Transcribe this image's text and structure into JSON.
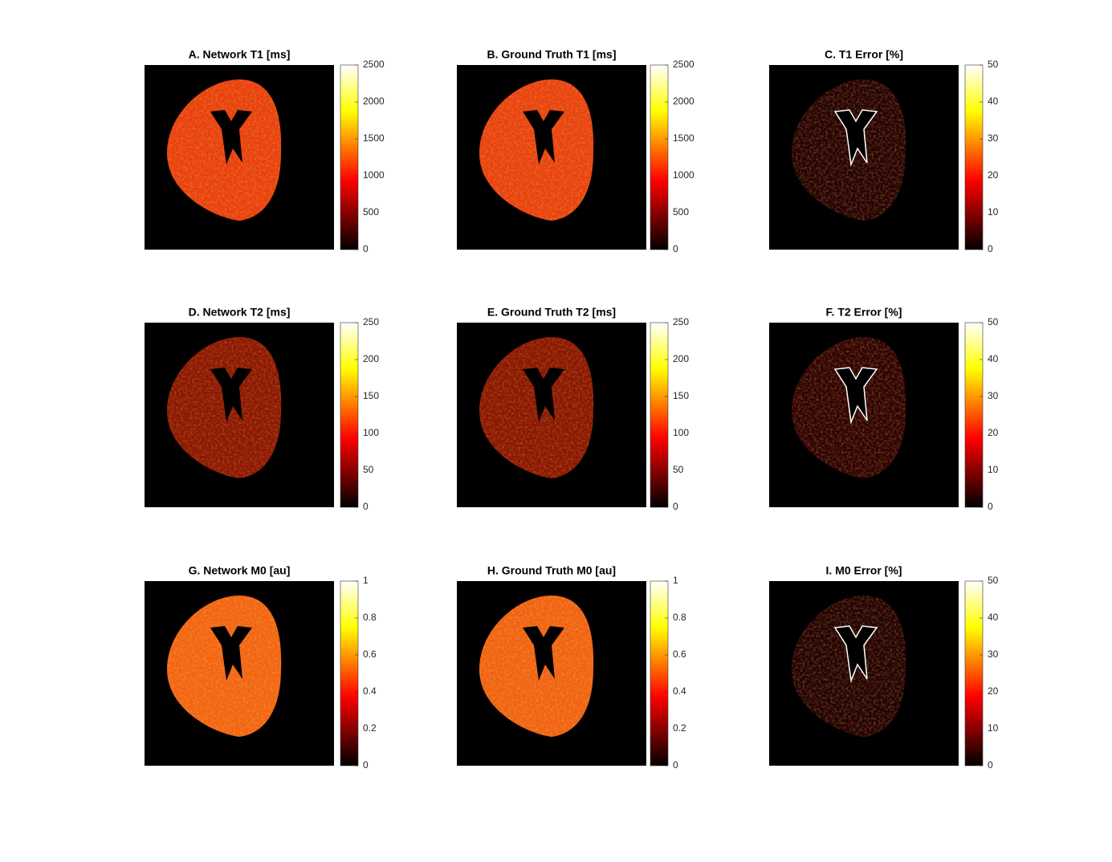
{
  "chart_data": [
    {
      "type": "heatmap",
      "title": "A. Network T1 [ms]",
      "colormap": "hot",
      "clim": [
        0,
        2500
      ],
      "cticks": [
        0,
        500,
        1000,
        1500,
        2000,
        2500
      ]
    },
    {
      "type": "heatmap",
      "title": "B. Ground Truth T1 [ms]",
      "colormap": "hot",
      "clim": [
        0,
        2500
      ],
      "cticks": [
        0,
        500,
        1000,
        1500,
        2000,
        2500
      ]
    },
    {
      "type": "heatmap",
      "title": "C. T1 Error [%]",
      "colormap": "hot",
      "clim": [
        0,
        50
      ],
      "cticks": [
        0,
        10,
        20,
        30,
        40,
        50
      ]
    },
    {
      "type": "heatmap",
      "title": "D. Network T2 [ms]",
      "colormap": "hot",
      "clim": [
        0,
        250
      ],
      "cticks": [
        0,
        50,
        100,
        150,
        200,
        250
      ]
    },
    {
      "type": "heatmap",
      "title": "E. Ground Truth T2 [ms]",
      "colormap": "hot",
      "clim": [
        0,
        250
      ],
      "cticks": [
        0,
        50,
        100,
        150,
        200,
        250
      ]
    },
    {
      "type": "heatmap",
      "title": "F. T2 Error [%]",
      "colormap": "hot",
      "clim": [
        0,
        50
      ],
      "cticks": [
        0,
        10,
        20,
        30,
        40,
        50
      ]
    },
    {
      "type": "heatmap",
      "title": "G. Network M0 [au]",
      "colormap": "hot",
      "clim": [
        0,
        1
      ],
      "cticks": [
        0,
        0.2,
        0.4,
        0.6,
        0.8,
        1
      ]
    },
    {
      "type": "heatmap",
      "title": "H. Ground Truth M0 [au]",
      "colormap": "hot",
      "clim": [
        0,
        1
      ],
      "cticks": [
        0,
        0.2,
        0.4,
        0.6,
        0.8,
        1
      ]
    },
    {
      "type": "heatmap",
      "title": "I. M0 Error [%]",
      "colormap": "hot",
      "clim": [
        0,
        50
      ],
      "cticks": [
        0,
        10,
        20,
        30,
        40,
        50
      ]
    }
  ]
}
